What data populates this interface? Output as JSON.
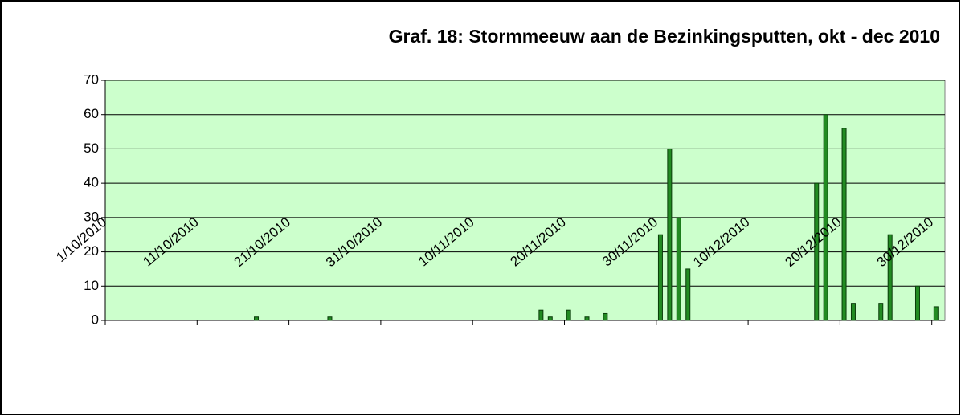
{
  "chart_data": {
    "type": "bar",
    "title": "Graf. 18: Stormmeeuw aan de Bezinkingsputten, okt - dec 2010",
    "categories": [
      "1/10/2010",
      null,
      null,
      null,
      null,
      null,
      null,
      null,
      null,
      null,
      "11/10/2010",
      null,
      null,
      null,
      null,
      null,
      null,
      null,
      null,
      null,
      "21/10/2010",
      null,
      null,
      null,
      null,
      null,
      null,
      null,
      null,
      null,
      "31/10/2010",
      null,
      null,
      null,
      null,
      null,
      null,
      null,
      null,
      null,
      "10/11/2010",
      null,
      null,
      null,
      null,
      null,
      null,
      null,
      null,
      null,
      "20/11/2010",
      null,
      null,
      null,
      null,
      null,
      null,
      null,
      null,
      null,
      "30/11/2010",
      null,
      null,
      null,
      null,
      null,
      null,
      null,
      null,
      null,
      "10/12/2010",
      null,
      null,
      null,
      null,
      null,
      null,
      null,
      null,
      null,
      "20/12/2010",
      null,
      null,
      null,
      null,
      null,
      null,
      null,
      null,
      null,
      "30/12/2010",
      null
    ],
    "values": [
      0,
      0,
      0,
      0,
      0,
      0,
      0,
      0,
      0,
      0,
      0,
      0,
      0,
      0,
      0,
      0,
      1,
      0,
      0,
      0,
      0,
      0,
      0,
      0,
      1,
      0,
      0,
      0,
      0,
      0,
      0,
      0,
      0,
      0,
      0,
      0,
      0,
      0,
      0,
      0,
      0,
      0,
      0,
      0,
      0,
      0,
      0,
      3,
      1,
      0,
      3,
      0,
      1,
      0,
      2,
      0,
      0,
      0,
      0,
      0,
      25,
      50,
      30,
      15,
      0,
      0,
      0,
      0,
      0,
      0,
      0,
      0,
      0,
      0,
      0,
      0,
      0,
      40,
      60,
      0,
      56,
      5,
      0,
      0,
      5,
      25,
      0,
      0,
      10,
      0,
      4,
      0
    ],
    "color": "#228b22",
    "ylim": [
      0,
      70
    ],
    "yticks": [
      0,
      10,
      20,
      30,
      40,
      50,
      60,
      70
    ],
    "grid": true
  }
}
